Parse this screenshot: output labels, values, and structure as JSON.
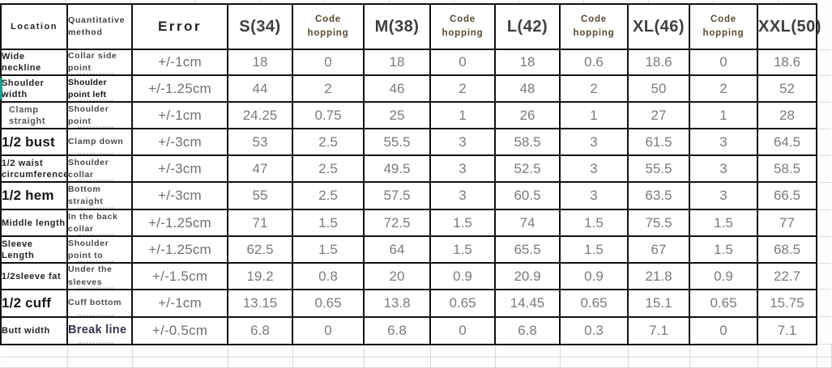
{
  "sheet": {
    "columns": [
      {
        "label": "Location",
        "type": "location"
      },
      {
        "label": "Quantitative method",
        "type": "method"
      },
      {
        "label": "Error",
        "type": "error"
      },
      {
        "label": "S(34)",
        "type": "size"
      },
      {
        "label": "Code hopping",
        "type": "hop"
      },
      {
        "label": "M(38)",
        "type": "size"
      },
      {
        "label": "Code hopping",
        "type": "hop"
      },
      {
        "label": "L(42)",
        "type": "size"
      },
      {
        "label": "Code hopping",
        "type": "hop"
      },
      {
        "label": "XL(46)",
        "type": "size"
      },
      {
        "label": "Code hopping",
        "type": "hop"
      },
      {
        "label": "XXL(50)",
        "type": "size"
      }
    ],
    "rows": [
      {
        "location": "Wide neckline",
        "location_style": "sm",
        "method": "Collar side point",
        "method_style": "normal",
        "error": "+/-1cm",
        "values": [
          "18",
          "0",
          "18",
          "0",
          "18",
          "0.6",
          "18.6",
          "0",
          "18.6"
        ]
      },
      {
        "location": "Shoulder width",
        "location_style": "sm",
        "method": "Shoulder point left",
        "method_style": "strong",
        "error": "+/-1.25cm",
        "values": [
          "44",
          "2",
          "46",
          "2",
          "48",
          "2",
          "50",
          "2",
          "52"
        ]
      },
      {
        "location": "Clamp straight",
        "location_style": "sm-gray",
        "method": "Shoulder point",
        "method_style": "normal",
        "error": "+/-1cm",
        "values": [
          "24.25",
          "0.75",
          "25",
          "1",
          "26",
          "1",
          "27",
          "1",
          "28"
        ]
      },
      {
        "location": "1/2 bust",
        "location_style": "lg",
        "method": "Clamp down",
        "method_style": "normal",
        "error": "+/-3cm",
        "values": [
          "53",
          "2.5",
          "55.5",
          "3",
          "58.5",
          "3",
          "61.5",
          "3",
          "64.5"
        ]
      },
      {
        "location": "1/2 waist circumference",
        "location_style": "sm",
        "method": "Shoulder collar",
        "method_style": "normal",
        "error": "+/-3cm",
        "values": [
          "47",
          "2.5",
          "49.5",
          "3",
          "52.5",
          "3",
          "55.5",
          "3",
          "58.5"
        ]
      },
      {
        "location": "1/2 hem",
        "location_style": "lg",
        "method": "Bottom straight",
        "method_style": "normal",
        "error": "+/-3cm",
        "values": [
          "55",
          "2.5",
          "57.5",
          "3",
          "60.5",
          "3",
          "63.5",
          "3",
          "66.5"
        ]
      },
      {
        "location": "Middle length",
        "location_style": "sm",
        "method": "In the back collar",
        "method_style": "normal",
        "error": "+/-1.25cm",
        "values": [
          "71",
          "1.5",
          "72.5",
          "1.5",
          "74",
          "1.5",
          "75.5",
          "1.5",
          "77"
        ]
      },
      {
        "location": "Sleeve Length",
        "location_style": "sm",
        "method": "Shoulder point to",
        "method_style": "normal",
        "error": "+/-1.25cm",
        "values": [
          "62.5",
          "1.5",
          "64",
          "1.5",
          "65.5",
          "1.5",
          "67",
          "1.5",
          "68.5"
        ]
      },
      {
        "location": "1/2sleeve fat",
        "location_style": "sm",
        "method": "Under the sleeves",
        "method_style": "normal",
        "error": "+/-1.5cm",
        "values": [
          "19.2",
          "0.8",
          "20",
          "0.9",
          "20.9",
          "0.9",
          "21.8",
          "0.9",
          "22.7"
        ]
      },
      {
        "location": "1/2 cuff",
        "location_style": "lg",
        "method": "Cuff bottom",
        "method_style": "normal",
        "error": "+/-1cm",
        "values": [
          "13.15",
          "0.65",
          "13.8",
          "0.65",
          "14.45",
          "0.65",
          "15.1",
          "0.65",
          "15.75"
        ]
      },
      {
        "location": "Butt width",
        "location_style": "sm",
        "method": "Break line",
        "method_style": "accent",
        "error": "+/-0.5cm",
        "values": [
          "6.8",
          "0",
          "6.8",
          "0",
          "6.8",
          "0.3",
          "7.1",
          "0",
          "7.1"
        ]
      }
    ]
  },
  "colors": {
    "code_hopping_text": "#5b4a32",
    "break_line_text": "#3e3250",
    "value_text": "#7b7b7b",
    "header_text": "#262626",
    "size_header_text": "#3f3f3f",
    "table_border": "#111111",
    "sheet_gridline": "#d7dade",
    "left_accent": "#18a08c"
  }
}
